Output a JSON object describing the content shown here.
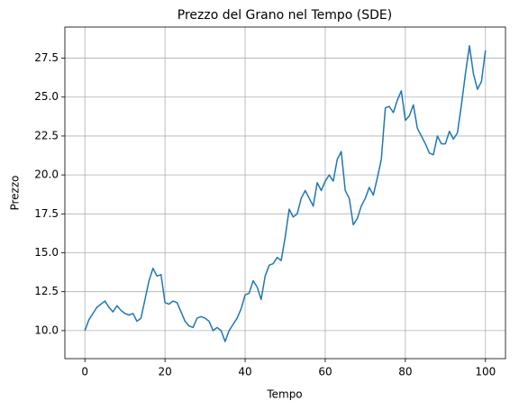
{
  "chart_data": {
    "type": "line",
    "title": "Prezzo del Grano nel Tempo (SDE)",
    "x_label": "Tempo",
    "y_label": "Prezzo",
    "x": [
      0,
      1,
      2,
      3,
      4,
      5,
      6,
      7,
      8,
      9,
      10,
      11,
      12,
      13,
      14,
      15,
      16,
      17,
      18,
      19,
      20,
      21,
      22,
      23,
      24,
      25,
      26,
      27,
      28,
      29,
      30,
      31,
      32,
      33,
      34,
      35,
      36,
      37,
      38,
      39,
      40,
      41,
      42,
      43,
      44,
      45,
      46,
      47,
      48,
      49,
      50,
      51,
      52,
      53,
      54,
      55,
      56,
      57,
      58,
      59,
      60,
      61,
      62,
      63,
      64,
      65,
      66,
      67,
      68,
      69,
      70,
      71,
      72,
      73,
      74,
      75,
      76,
      77,
      78,
      79,
      80,
      81,
      82,
      83,
      84,
      85,
      86,
      87,
      88,
      89,
      90,
      91,
      92,
      93,
      94,
      95,
      96,
      97,
      98,
      99,
      100
    ],
    "values": [
      10.0,
      10.7,
      11.1,
      11.5,
      11.7,
      11.9,
      11.5,
      11.2,
      11.6,
      11.3,
      11.1,
      11.0,
      11.1,
      10.6,
      10.8,
      12.0,
      13.2,
      14.0,
      13.5,
      13.6,
      11.8,
      11.7,
      11.9,
      11.8,
      11.2,
      10.6,
      10.3,
      10.2,
      10.8,
      10.9,
      10.8,
      10.6,
      10.0,
      10.2,
      10.0,
      9.3,
      10.0,
      10.4,
      10.8,
      11.4,
      12.3,
      12.4,
      13.2,
      12.8,
      12.0,
      13.5,
      14.2,
      14.3,
      14.7,
      14.5,
      16.0,
      17.8,
      17.3,
      17.5,
      18.5,
      19.0,
      18.5,
      18.0,
      19.5,
      19.0,
      19.6,
      20.0,
      19.6,
      21.0,
      21.5,
      19.0,
      18.5,
      16.8,
      17.2,
      18.0,
      18.5,
      19.2,
      18.7,
      19.8,
      21.0,
      24.3,
      24.4,
      24.0,
      24.8,
      25.4,
      23.5,
      23.8,
      24.5,
      23.0,
      22.5,
      22.0,
      21.4,
      21.3,
      22.5,
      22.0,
      22.0,
      22.8,
      22.3,
      22.7,
      24.5,
      26.5,
      28.3,
      26.5,
      25.5,
      26.0,
      28.0
    ],
    "color": "#1f77b4",
    "grid": true,
    "xlim": [
      -5,
      105
    ],
    "xticks": [
      0,
      20,
      40,
      60,
      80,
      100
    ],
    "ylim": [
      8.2,
      29.5
    ],
    "yticks": [
      {
        "value": 10,
        "label": "10.0"
      },
      12.5,
      {
        "value": 15,
        "label": "15.0"
      },
      17.5,
      {
        "value": 20,
        "label": "20.0"
      },
      22.5,
      {
        "value": 25,
        "label": "25.0"
      },
      27.5
    ]
  }
}
